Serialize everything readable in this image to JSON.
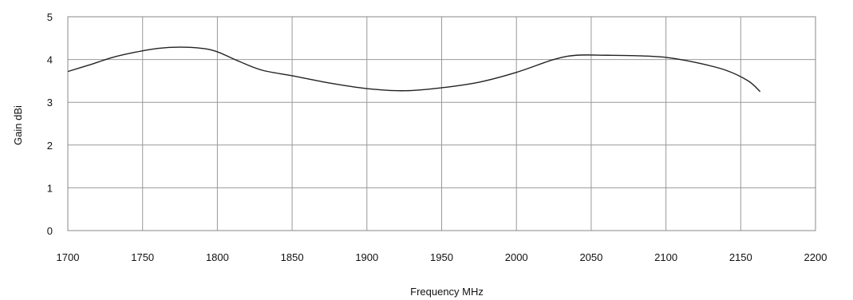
{
  "chart_data": {
    "type": "line",
    "title": "",
    "xlabel": "Frequency  MHz",
    "ylabel": "Gain dBi",
    "xlim": [
      1700,
      2200
    ],
    "ylim": [
      0,
      5
    ],
    "xticks": [
      1700,
      1750,
      1800,
      1850,
      1900,
      1950,
      2000,
      2050,
      2100,
      2150,
      2200
    ],
    "yticks": [
      0,
      1,
      2,
      3,
      4,
      5
    ],
    "grid": true,
    "legend": "none",
    "series": [
      {
        "color": "#222222",
        "x": [
          1700,
          1715,
          1730,
          1745,
          1760,
          1775,
          1790,
          1800,
          1815,
          1830,
          1850,
          1875,
          1900,
          1925,
          1950,
          1975,
          2000,
          2025,
          2040,
          2060,
          2080,
          2100,
          2120,
          2140,
          2155,
          2163
        ],
        "y": [
          3.72,
          3.88,
          4.05,
          4.17,
          4.26,
          4.29,
          4.26,
          4.18,
          3.95,
          3.75,
          3.62,
          3.45,
          3.32,
          3.27,
          3.34,
          3.47,
          3.7,
          4.0,
          4.1,
          4.1,
          4.09,
          4.05,
          3.93,
          3.75,
          3.5,
          3.25
        ]
      }
    ]
  }
}
